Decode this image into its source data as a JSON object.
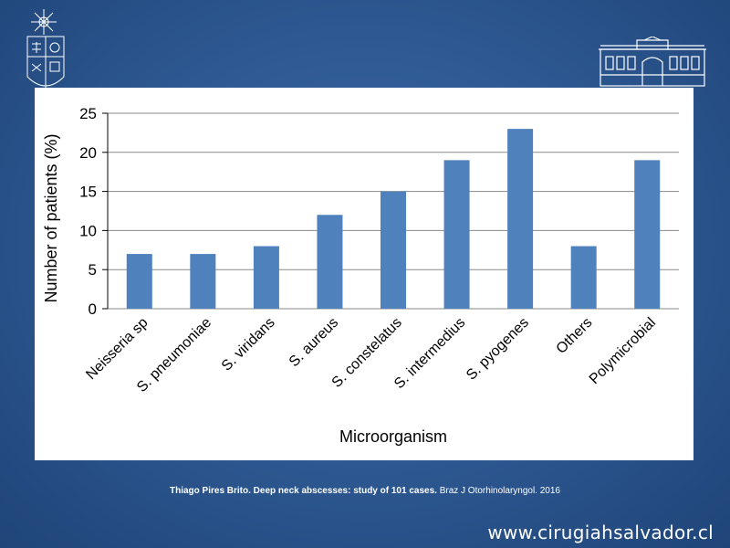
{
  "slide": {
    "citation_bold": "Thiago Pires Brito. Deep neck abscesses: study of 101 cases.",
    "citation_regular": "Braz J Otorhinolaryngol. 2016",
    "website": "www.cirugiahsalvador.cl"
  },
  "colors": {
    "bar": "#4f81bd",
    "background": "#2f5a94"
  },
  "icons": {
    "left_logo": "university-crest-icon",
    "right_logo": "hospital-building-icon"
  },
  "chart_data": {
    "type": "bar",
    "categories": [
      "Neisseria sp",
      "S. pneumoniae",
      "S. viridans",
      "S. aureus",
      "S. constelatus",
      "S. intermedius",
      "S. pyogenes",
      "Others",
      "Polymicrobial"
    ],
    "values": [
      7,
      7,
      8,
      12,
      15,
      19,
      23,
      8,
      19
    ],
    "xlabel": "Microorganism",
    "ylabel": "Number of patients (%)",
    "ylim": [
      0,
      25
    ],
    "yticks": [
      0,
      5,
      10,
      15,
      20,
      25
    ],
    "grid": true,
    "legend": "none"
  }
}
